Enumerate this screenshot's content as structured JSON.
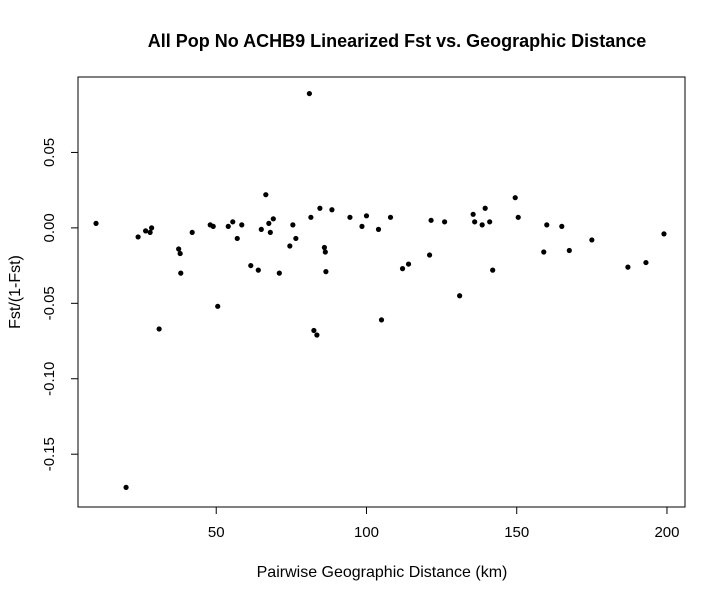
{
  "chart_data": {
    "type": "scatter",
    "title": "All Pop No ACHB9 Linearized Fst vs. Geographic Distance",
    "xlabel": "Pairwise Geographic Distance (km)",
    "ylabel": "Fst/(1-Fst)",
    "xlim": [
      4,
      206
    ],
    "ylim": [
      -0.185,
      0.1
    ],
    "x_ticks": [
      50,
      100,
      150,
      200
    ],
    "x_tick_labels": [
      "50",
      "100",
      "150",
      "200"
    ],
    "y_ticks": [
      -0.15,
      -0.1,
      -0.05,
      0.0,
      0.05
    ],
    "y_tick_labels": [
      "-0.15",
      "-0.10",
      "-0.05",
      "0.00",
      "0.05"
    ],
    "grid": false,
    "legend": "none",
    "marker_color": "#000000",
    "points": [
      {
        "x": 10,
        "y": 0.003
      },
      {
        "x": 20,
        "y": -0.172
      },
      {
        "x": 24,
        "y": -0.006
      },
      {
        "x": 26.5,
        "y": -0.002
      },
      {
        "x": 28,
        "y": -0.003
      },
      {
        "x": 28.5,
        "y": 0.0
      },
      {
        "x": 31,
        "y": -0.067
      },
      {
        "x": 37.5,
        "y": -0.014
      },
      {
        "x": 38,
        "y": -0.017
      },
      {
        "x": 38.2,
        "y": -0.03
      },
      {
        "x": 42,
        "y": -0.003
      },
      {
        "x": 48,
        "y": 0.002
      },
      {
        "x": 49,
        "y": 0.001
      },
      {
        "x": 50.5,
        "y": -0.052
      },
      {
        "x": 54,
        "y": 0.001
      },
      {
        "x": 55.5,
        "y": 0.004
      },
      {
        "x": 57,
        "y": -0.007
      },
      {
        "x": 58.5,
        "y": 0.002
      },
      {
        "x": 61.5,
        "y": -0.025
      },
      {
        "x": 64,
        "y": -0.028
      },
      {
        "x": 65,
        "y": -0.001
      },
      {
        "x": 66.5,
        "y": 0.022
      },
      {
        "x": 67.5,
        "y": 0.003
      },
      {
        "x": 68,
        "y": -0.003
      },
      {
        "x": 69,
        "y": 0.006
      },
      {
        "x": 71,
        "y": -0.03
      },
      {
        "x": 74.5,
        "y": -0.012
      },
      {
        "x": 75.5,
        "y": 0.002
      },
      {
        "x": 76.5,
        "y": -0.007
      },
      {
        "x": 81,
        "y": 0.089
      },
      {
        "x": 81.5,
        "y": 0.007
      },
      {
        "x": 82.5,
        "y": -0.068
      },
      {
        "x": 83.5,
        "y": -0.071
      },
      {
        "x": 84.5,
        "y": 0.013
      },
      {
        "x": 86,
        "y": -0.013
      },
      {
        "x": 86.3,
        "y": -0.016
      },
      {
        "x": 86.5,
        "y": -0.029
      },
      {
        "x": 88.5,
        "y": 0.012
      },
      {
        "x": 94.5,
        "y": 0.007
      },
      {
        "x": 98.5,
        "y": 0.001
      },
      {
        "x": 100,
        "y": 0.008
      },
      {
        "x": 104,
        "y": -0.001
      },
      {
        "x": 105,
        "y": -0.061
      },
      {
        "x": 108,
        "y": 0.007
      },
      {
        "x": 112,
        "y": -0.027
      },
      {
        "x": 114,
        "y": -0.024
      },
      {
        "x": 121,
        "y": -0.018
      },
      {
        "x": 121.5,
        "y": 0.005
      },
      {
        "x": 126,
        "y": 0.004
      },
      {
        "x": 131,
        "y": -0.045
      },
      {
        "x": 135.5,
        "y": 0.009
      },
      {
        "x": 136,
        "y": 0.004
      },
      {
        "x": 138.5,
        "y": 0.002
      },
      {
        "x": 139.5,
        "y": 0.013
      },
      {
        "x": 141,
        "y": 0.004
      },
      {
        "x": 142,
        "y": -0.028
      },
      {
        "x": 149.5,
        "y": 0.02
      },
      {
        "x": 150.5,
        "y": 0.007
      },
      {
        "x": 159,
        "y": -0.016
      },
      {
        "x": 160,
        "y": 0.002
      },
      {
        "x": 165,
        "y": 0.001
      },
      {
        "x": 167.5,
        "y": -0.015
      },
      {
        "x": 175,
        "y": -0.008
      },
      {
        "x": 187,
        "y": -0.026
      },
      {
        "x": 193,
        "y": -0.023
      },
      {
        "x": 199,
        "y": -0.004
      }
    ]
  }
}
